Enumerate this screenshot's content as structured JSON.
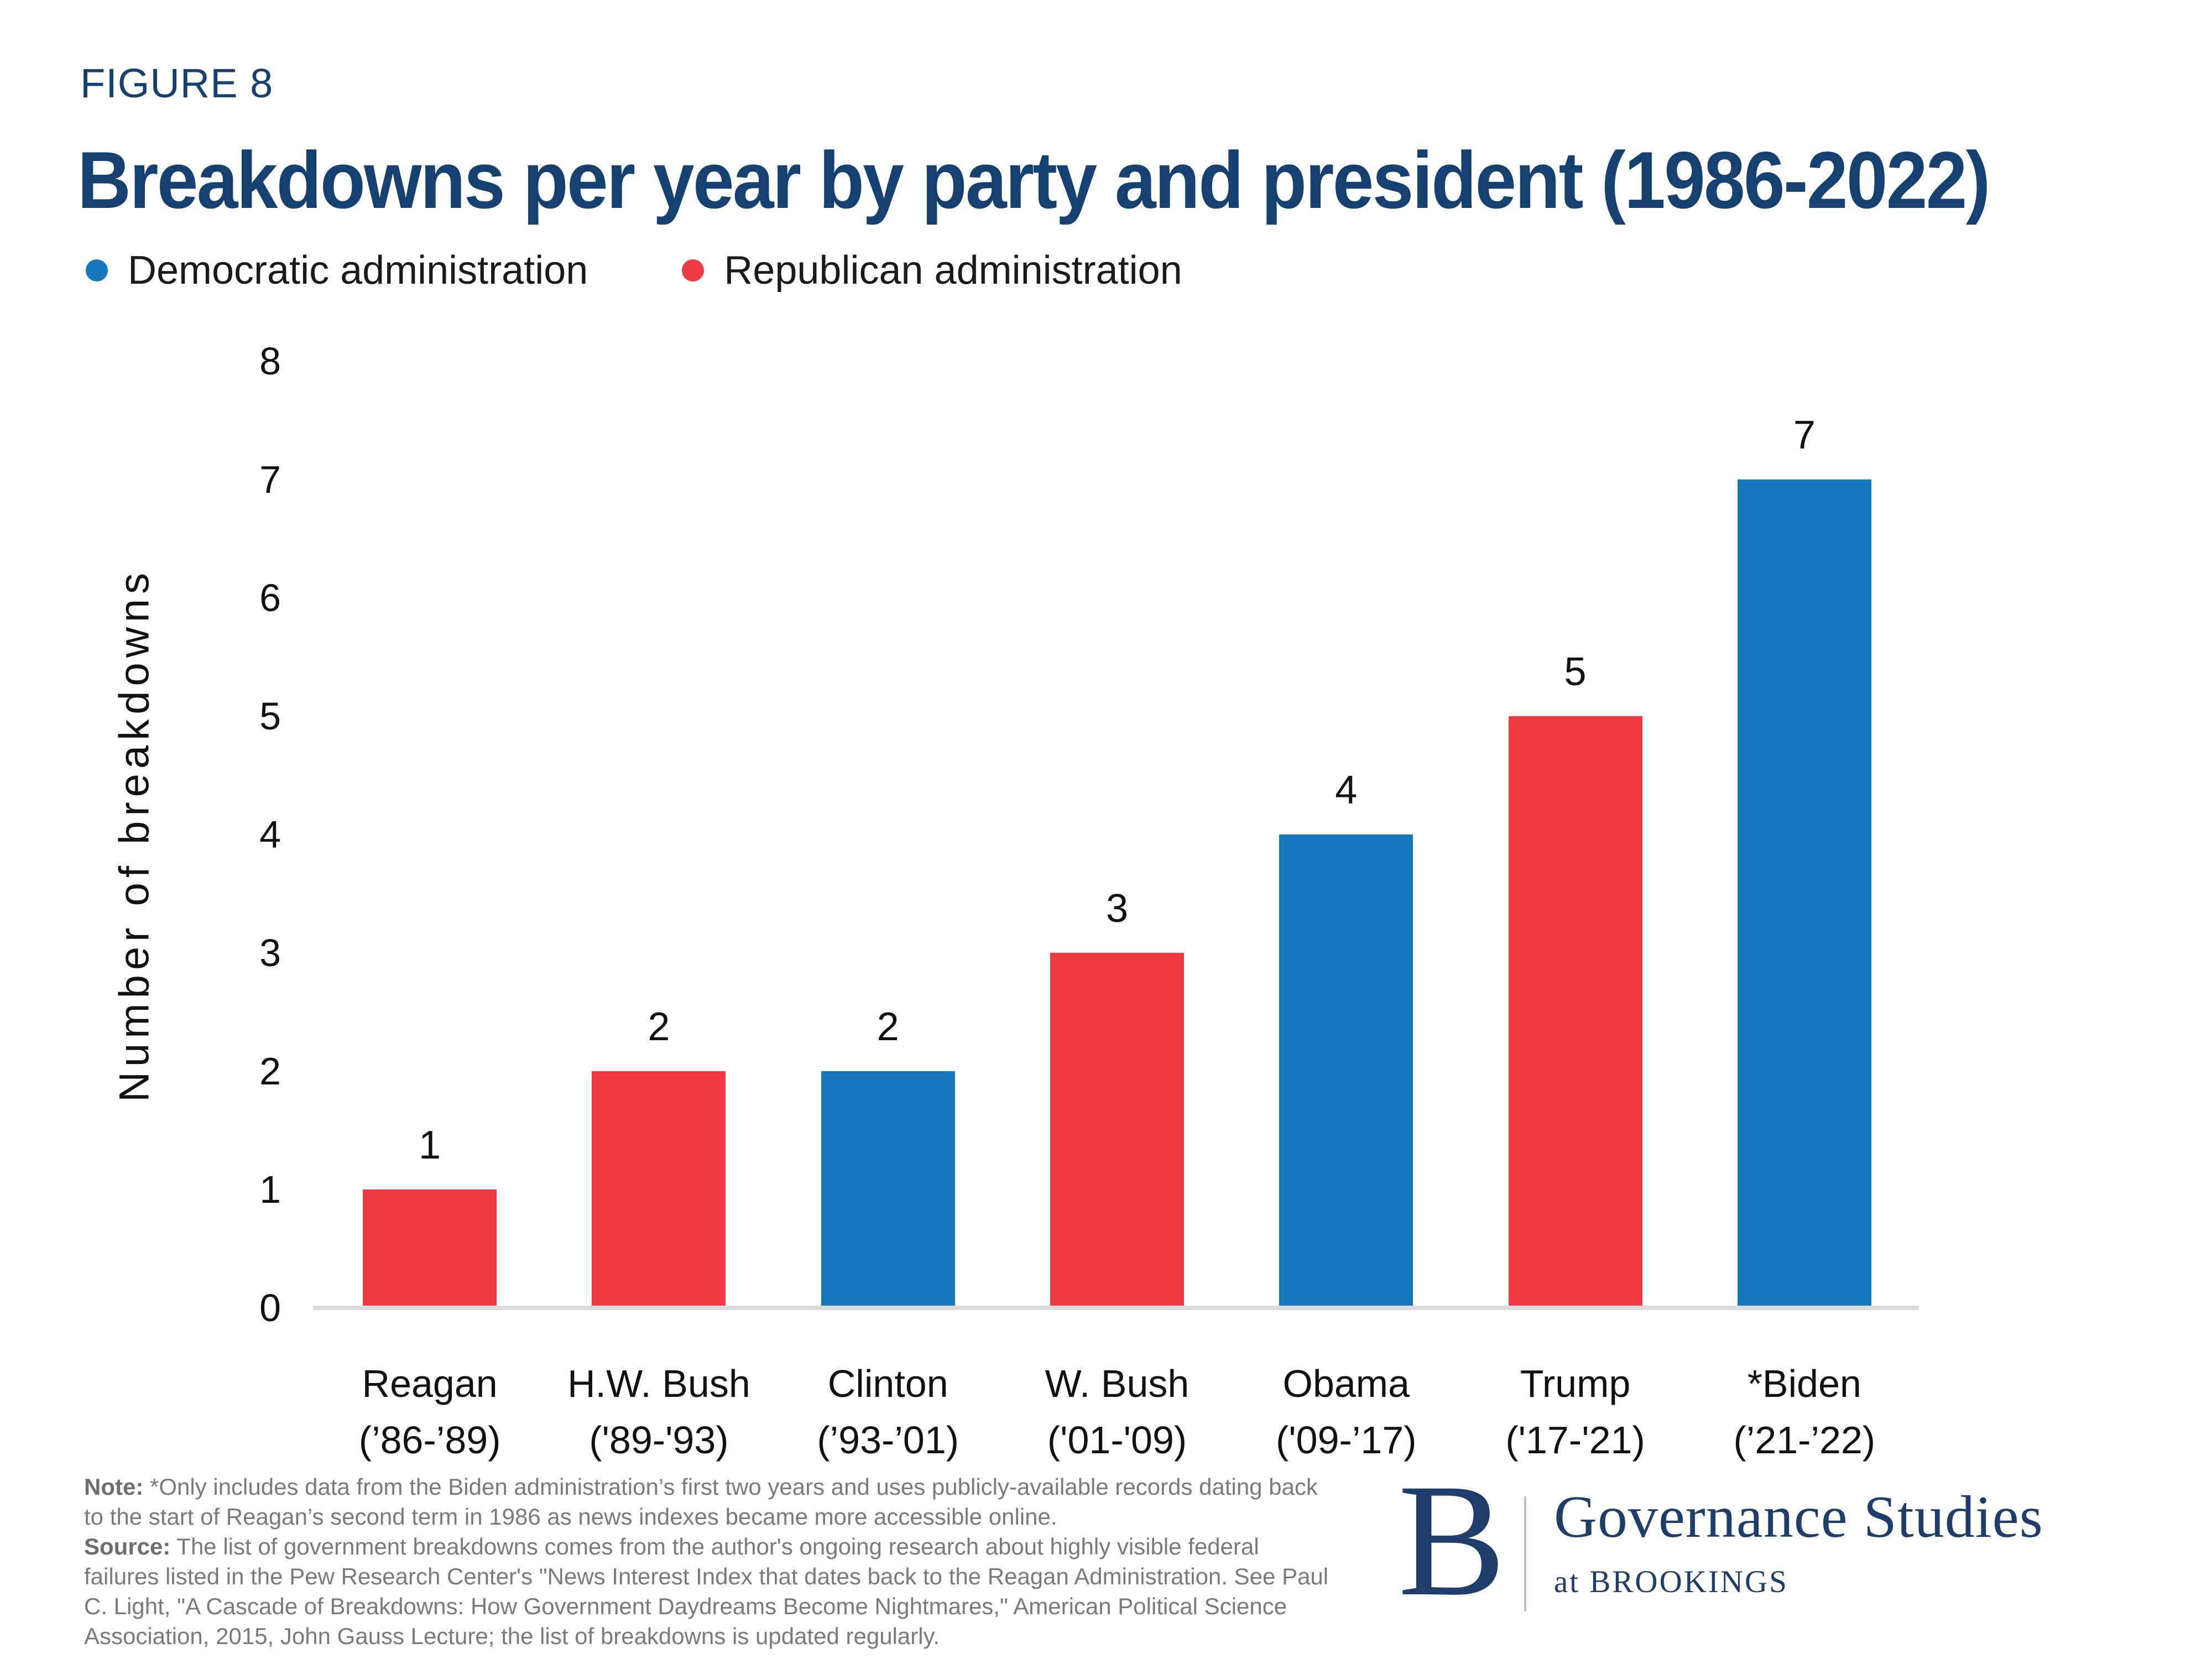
{
  "figure_label": "FIGURE 8",
  "title": "Breakdowns per year by party and president (1986-2022)",
  "legend": [
    {
      "label": "Democratic administration",
      "party": "democratic"
    },
    {
      "label": "Republican administration",
      "party": "republican"
    }
  ],
  "party_colors": {
    "democratic": "#1679BE",
    "republican": "#EE3A42"
  },
  "colors": {
    "navy_title": "#164070",
    "logo_navy": "#1E3D6B",
    "axis_line": "#DCDCDC",
    "note_gray": "#7A7A7A"
  },
  "chart_data": {
    "type": "bar",
    "title": "Breakdowns per year by party and president (1986-2022)",
    "xlabel": "",
    "ylabel": "Number of breakdowns",
    "ylim": [
      0,
      8
    ],
    "yticks": [
      0,
      1,
      2,
      3,
      4,
      5,
      6,
      7,
      8
    ],
    "grid": false,
    "legend_position": "top-left",
    "categories": [
      "Reagan",
      "H.W. Bush",
      "Clinton",
      "W. Bush",
      "Obama",
      "Trump",
      "*Biden"
    ],
    "points": [
      {
        "name": "Reagan",
        "years": "(’86-’89)",
        "party": "republican",
        "value": 1
      },
      {
        "name": "H.W. Bush",
        "years": "('89-'93)",
        "party": "republican",
        "value": 2
      },
      {
        "name": "Clinton",
        "years": "(’93-’01)",
        "party": "democratic",
        "value": 2
      },
      {
        "name": "W. Bush",
        "years": "('01-'09)",
        "party": "republican",
        "value": 3
      },
      {
        "name": "Obama",
        "years": "('09-’17)",
        "party": "democratic",
        "value": 4
      },
      {
        "name": "Trump",
        "years": "('17-'21)",
        "party": "republican",
        "value": 5
      },
      {
        "name": "*Biden",
        "years": "(’21-’22)",
        "party": "democratic",
        "value": 7
      }
    ]
  },
  "note": {
    "note_label": "Note:",
    "note_text": " *Only includes data from the Biden administration’s first two years and uses publicly-available records dating back to the start of Reagan’s second term in 1986 as news indexes became more accessible online.",
    "source_label": "Source:",
    "source_text": " The list of government breakdowns comes from the author's ongoing research about highly visible federal failures listed in the Pew Research Center's \"News Interest Index that dates back to the Reagan Administration. See Paul C. Light, \"A Cascade of Breakdowns: How Government Daydreams Become Nightmares,\" American Political Science Association, 2015, John Gauss Lecture; the list of breakdowns is updated regularly."
  },
  "logo": {
    "monogram": "B",
    "program": "Governance Studies",
    "institution": "at BROOKINGS"
  }
}
